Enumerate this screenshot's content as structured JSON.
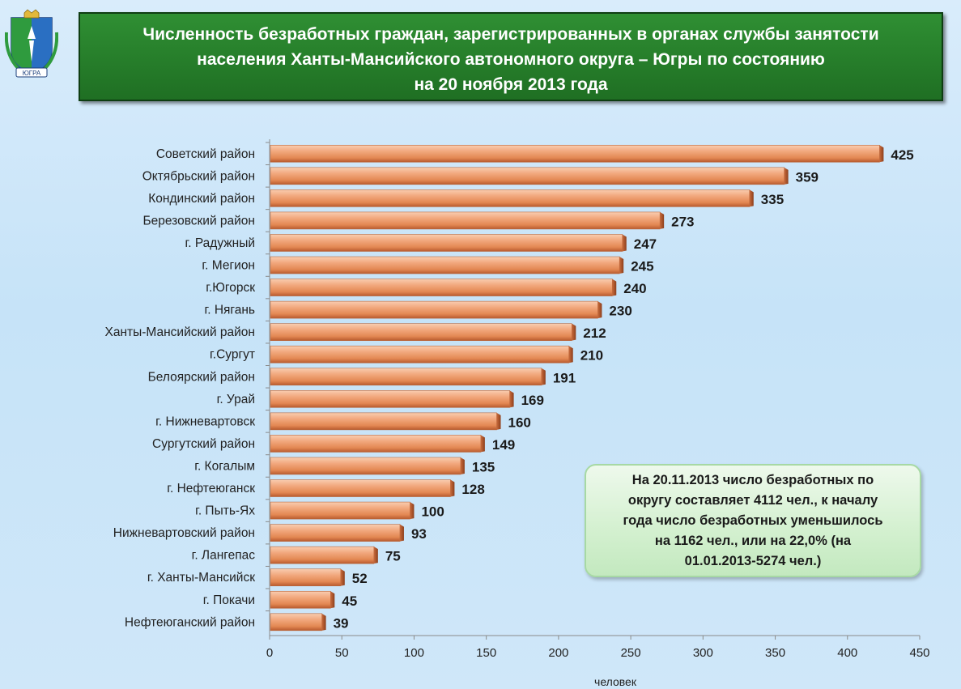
{
  "title": {
    "line1": "Численность безработных граждан, зарегистрированных в органах службы занятости",
    "line2": "населения Ханты-Мансийского автономного округа – Югры по состоянию",
    "line3": "на 20 ноября 2013  года"
  },
  "emblem": {
    "label": "ЮГРА"
  },
  "info": {
    "line1": "На 20.11.2013 число безработных по",
    "line2": "округу составляет  4112 чел., к началу",
    "line3": "года число безработных уменьшилось",
    "line4": "на 1162 чел., или на  22,0% (на",
    "line5": "01.01.2013-5274 чел.)"
  },
  "colors": {
    "bar_light": "#f8c4a4",
    "bar_mid": "#ee9a6e",
    "bar_dark": "#c2653a",
    "title_bg": "#2a852e"
  },
  "chart_data": {
    "type": "bar",
    "orientation": "horizontal",
    "title": "",
    "xlabel": "человек",
    "ylabel": "",
    "xlim": [
      0,
      450
    ],
    "ticks": [
      0,
      50,
      100,
      150,
      200,
      250,
      300,
      350,
      400,
      450
    ],
    "grid": false,
    "categories": [
      "Советский район",
      "Октябрьский район",
      "Кондинский район",
      "Березовский район",
      "г. Радужный",
      "г. Мегион",
      "г.Югорск",
      "г. Нягань",
      "Ханты-Мансийский район",
      "г.Сургут",
      "Белоярский район",
      "г. Урай",
      "г. Нижневартовск",
      "Сургутский район",
      "г. Когалым",
      "г. Нефтеюганск",
      "г. Пыть-Ях",
      "Нижневартовский район",
      "г. Лангепас",
      "г. Ханты-Мансийск",
      "г. Покачи",
      "Нефтеюганский район"
    ],
    "values": [
      425,
      359,
      335,
      273,
      247,
      245,
      240,
      230,
      212,
      210,
      191,
      169,
      160,
      149,
      135,
      128,
      100,
      93,
      75,
      52,
      45,
      39
    ]
  }
}
